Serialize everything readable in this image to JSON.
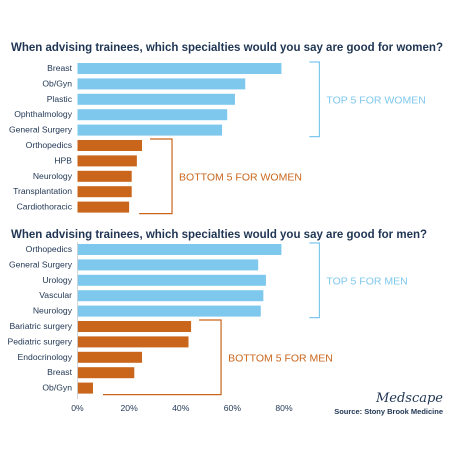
{
  "chart_data": [
    {
      "type": "bar",
      "orientation": "horizontal",
      "title": "When advising trainees, which specialties would you say are good for women?",
      "categories": [
        "Breast",
        "Ob/Gyn",
        "Plastic",
        "Ophthalmology",
        "General Surgery",
        "Orthopedics",
        "HPB",
        "Neurology",
        "Transplantation",
        "Cardiothoracic"
      ],
      "values": [
        79,
        65,
        61,
        58,
        56,
        25,
        23,
        21,
        21,
        20
      ],
      "groups": [
        {
          "label": "TOP 5 FOR WOMEN",
          "count": 5,
          "color": "#7ec8ee"
        },
        {
          "label": "BOTTOM 5 FOR WOMEN",
          "count": 5,
          "color": "#c9661c"
        }
      ],
      "xlim": [
        0,
        80
      ],
      "grid": false
    },
    {
      "type": "bar",
      "orientation": "horizontal",
      "title": "When advising trainees, which specialties would you say are good for men?",
      "categories": [
        "Orthopedics",
        "General Surgery",
        "Urology",
        "Vascular",
        "Neurology",
        "Bariatric surgery",
        "Pediatric surgery",
        "Endocrinology",
        "Breast",
        "Ob/Gyn"
      ],
      "values": [
        79,
        70,
        73,
        72,
        71,
        44,
        43,
        25,
        22,
        6
      ],
      "groups": [
        {
          "label": "TOP 5 FOR MEN",
          "count": 5,
          "color": "#7ec8ee"
        },
        {
          "label": "BOTTOM 5 FOR MEN",
          "count": 5,
          "color": "#c9661c"
        }
      ],
      "xlim": [
        0,
        80
      ],
      "xticks": [
        0,
        20,
        40,
        60,
        80
      ],
      "xtick_labels": [
        "0%",
        "20%",
        "40%",
        "60%",
        "80%"
      ],
      "grid": false
    }
  ],
  "footer": {
    "brand": "Medscape",
    "source": "Source: Stony Brook Medicine"
  }
}
